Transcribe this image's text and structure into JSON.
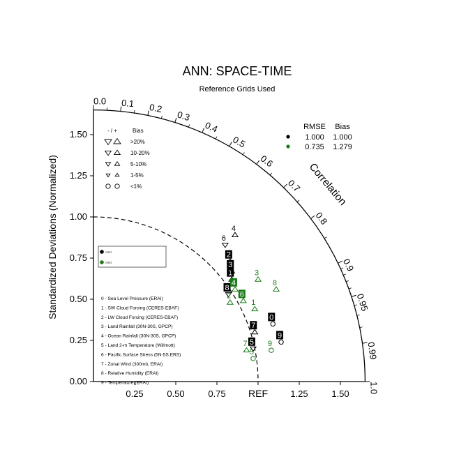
{
  "colors": {
    "model1": "#000000",
    "model2": "#1a7a1a",
    "label_box_fill": "#000000",
    "label_box_text": "#ffffff"
  },
  "chart_data": {
    "type": "scatter",
    "subtype": "taylor-diagram",
    "title": "ANN: SPACE-TIME",
    "subtitle": "Reference Grids Used",
    "ylabel": "Standardized Deviations (Normalized)",
    "arc_label": "Correlation",
    "ref_label": "REF",
    "xlim": [
      0,
      1.65
    ],
    "ylim": [
      0,
      1.65
    ],
    "std_ticks": [
      {
        "v": 0.0,
        "label": "0.00"
      },
      {
        "v": 0.25,
        "label": "0.25"
      },
      {
        "v": 0.5,
        "label": "0.50"
      },
      {
        "v": 0.75,
        "label": "0.75"
      },
      {
        "v": 1.0,
        "label": "1.00"
      },
      {
        "v": 1.25,
        "label": "1.25"
      },
      {
        "v": 1.5,
        "label": "1.50"
      }
    ],
    "x_tick_labels": [
      {
        "v": 0.25,
        "label": "0.25"
      },
      {
        "v": 0.5,
        "label": "0.50"
      },
      {
        "v": 0.75,
        "label": "0.75"
      },
      {
        "v": 1.25,
        "label": "1.25"
      },
      {
        "v": 1.5,
        "label": "1.50"
      }
    ],
    "corr_ticks": [
      {
        "r": 0.0,
        "label": "0.0"
      },
      {
        "r": 0.1,
        "label": "0.1"
      },
      {
        "r": 0.2,
        "label": "0.2"
      },
      {
        "r": 0.3,
        "label": "0.3"
      },
      {
        "r": 0.4,
        "label": "0.4"
      },
      {
        "r": 0.5,
        "label": "0.5"
      },
      {
        "r": 0.6,
        "label": "0.6"
      },
      {
        "r": 0.7,
        "label": "0.7"
      },
      {
        "r": 0.8,
        "label": "0.8"
      },
      {
        "r": 0.9,
        "label": "0.9"
      },
      {
        "r": 0.95,
        "label": "0.95"
      },
      {
        "r": 0.99,
        "label": "0.99"
      },
      {
        "r": 1.0,
        "label": "1.0"
      }
    ],
    "bias_legend": {
      "header_sign": "- / +",
      "header_bias": "Bias",
      "rows": [
        {
          "label": ">20%",
          "size": 5.0
        },
        {
          "label": "10-20%",
          "size": 4.3
        },
        {
          "label": "5-10%",
          "size": 3.6
        },
        {
          "label": "1-5%",
          "size": 2.8
        },
        {
          "label": "<1%",
          "size": 0
        }
      ]
    },
    "stats_legend": {
      "headers": [
        "RMSE",
        "Bias"
      ],
      "rows": [
        {
          "series": "model1",
          "rmse": "1.000",
          "bias": "1.000"
        },
        {
          "series": "model2",
          "rmse": "0.735",
          "bias": "1.279"
        }
      ]
    },
    "case_legend": [
      "case1",
      "case2"
    ],
    "variables": [
      "0 - Sea Level Pressure (ERAI)",
      "1 - SW Cloud Forcing (CERES-EBAF)",
      "2 - LW Cloud Forcing (CERES-EBAF)",
      "3 - Land Rainfall (30N-30S, GPCP)",
      "4 - Ocean Rainfall (30N-30S, GPCP)",
      "5 - Land 2-m Temperature (Willmott)",
      "6 - Pacific Surface Stress (5N-5S,ERS)",
      "7 - Zonal Wind (300mb, ERAI)",
      "8 - Relative Humidity (ERAI)",
      "9 - Temperature (ERAI)"
    ],
    "series": [
      {
        "name": "model1",
        "points": [
          {
            "id": "0",
            "x": 1.09,
            "y": 0.35,
            "marker": "circle",
            "label_style": "box"
          },
          {
            "id": "1",
            "x": 0.84,
            "y": 0.62,
            "marker": "triangle-up",
            "label_style": "box"
          },
          {
            "id": "2",
            "x": 0.83,
            "y": 0.73,
            "marker": "triangle-up",
            "label_style": "box"
          },
          {
            "id": "3",
            "x": 0.84,
            "y": 0.67,
            "marker": "triangle-up",
            "label_style": "box"
          },
          {
            "id": "4",
            "x": 0.86,
            "y": 0.89,
            "marker": "triangle-up",
            "label_style": "plain"
          },
          {
            "id": "5",
            "x": 0.97,
            "y": 0.2,
            "marker": "triangle-down",
            "label_style": "box"
          },
          {
            "id": "6",
            "x": 0.8,
            "y": 0.83,
            "marker": "triangle-down",
            "label_style": "plain"
          },
          {
            "id": "7",
            "x": 0.98,
            "y": 0.3,
            "marker": "triangle-up",
            "label_style": "box"
          },
          {
            "id": "8",
            "x": 0.82,
            "y": 0.53,
            "marker": "triangle-down",
            "label_style": "box"
          },
          {
            "id": "9",
            "x": 1.14,
            "y": 0.24,
            "marker": "circle",
            "label_style": "box"
          }
        ]
      },
      {
        "name": "model2",
        "points": [
          {
            "id": "1",
            "x": 0.98,
            "y": 0.44,
            "marker": "triangle-up",
            "label_style": "plain"
          },
          {
            "id": "2",
            "x": 0.83,
            "y": 0.48,
            "marker": "triangle-up",
            "label_style": "plain"
          },
          {
            "id": "3",
            "x": 1.0,
            "y": 0.62,
            "marker": "triangle-up",
            "label_style": "plain"
          },
          {
            "id": "4",
            "x": 0.86,
            "y": 0.56,
            "marker": "triangle-up",
            "label_style": "box"
          },
          {
            "id": "5",
            "x": 0.97,
            "y": 0.14,
            "marker": "circle",
            "label_style": "plain"
          },
          {
            "id": "6",
            "x": 0.91,
            "y": 0.49,
            "marker": "triangle-up",
            "label_style": "box"
          },
          {
            "id": "7",
            "x": 0.93,
            "y": 0.19,
            "marker": "triangle-up",
            "label_style": "plain"
          },
          {
            "id": "8",
            "x": 1.11,
            "y": 0.56,
            "marker": "triangle-up",
            "label_style": "plain"
          },
          {
            "id": "9",
            "x": 1.08,
            "y": 0.19,
            "marker": "circle",
            "label_style": "plain"
          }
        ]
      }
    ]
  }
}
